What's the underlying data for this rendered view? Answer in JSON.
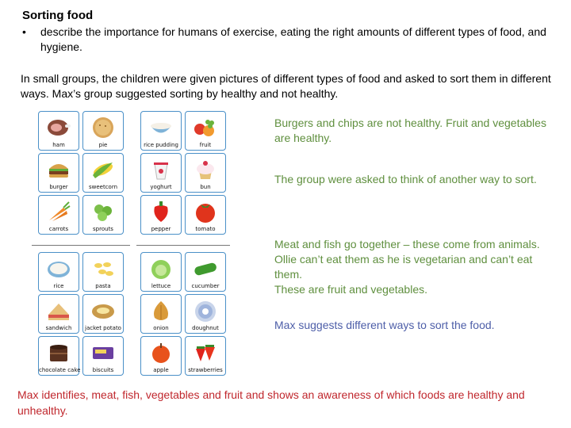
{
  "heading": "Sorting food",
  "bullet": {
    "marker": "•",
    "text": "describe the importance for humans of exercise, eating the right amounts of different types of food, and hygiene."
  },
  "intro": "In small groups, the children were given pictures of different types of food and asked to sort them in different ways. Max’s group suggested sorting by healthy and not healthy.",
  "notes": {
    "healthy": "Burgers and chips are not healthy. Fruit and vegetables are healthy.",
    "another_way": "The group were asked to think of another way to sort.",
    "meat_fish": "Meat and fish go together – these come from animals. Ollie can’t eat them as he is vegetarian and can’t eat them.",
    "fruit_veg": "These are fruit and vegetables.",
    "max_suggests": "Max suggests different ways to sort the food."
  },
  "conclusion": "Max identifies, meat, fish, vegetables and fruit and shows an awareness of which foods are healthy and unhealthy.",
  "colors": {
    "green_text": "#5f8f3e",
    "blue_text": "#4d5ea8",
    "red_text": "#c0272d",
    "card_border": "#4a90c8"
  },
  "food_cards": {
    "ham": "ham",
    "pie": "pie",
    "rice_pudding": "rice pudding",
    "fruit": "fruit",
    "burger": "burger",
    "sweetcorn": "sweetcorn",
    "yoghurt": "yoghurt",
    "bun": "bun",
    "carrots": "carrots",
    "sprouts": "sprouts",
    "pepper": "pepper",
    "tomato": "tomato",
    "rice": "rice",
    "pasta": "pasta",
    "lettuce": "lettuce",
    "cucumber": "cucumber",
    "sandwich": "sandwich",
    "jacket_potato": "jacket potato",
    "onion": "onion",
    "doughnut": "doughnut",
    "chocolate_cake": "chocolate cake",
    "biscuits": "biscuits",
    "apple": "apple",
    "strawberries": "strawberries"
  }
}
